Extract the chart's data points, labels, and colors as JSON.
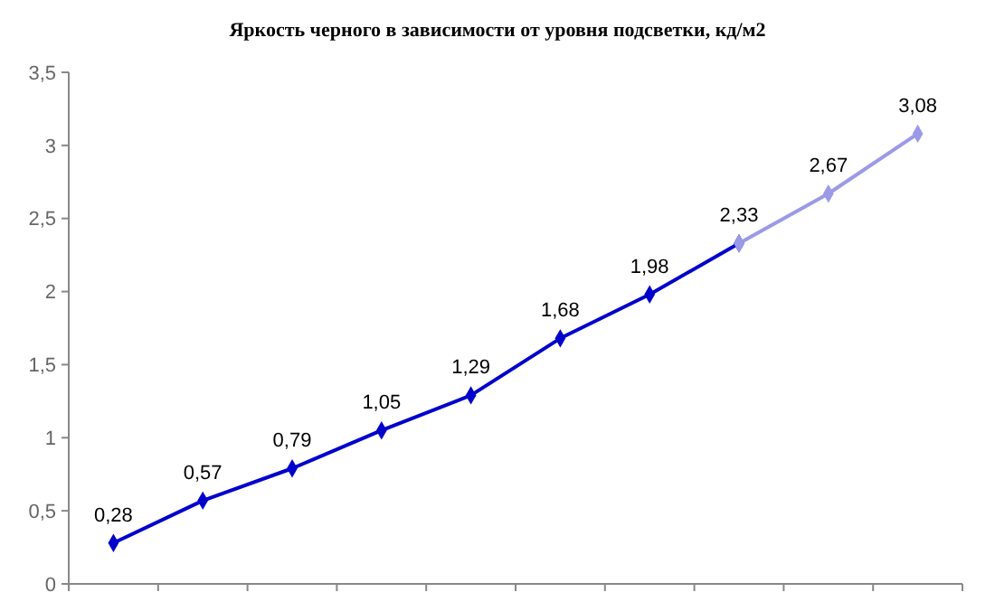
{
  "chart_data": {
    "type": "line",
    "title": "Яркость черного в зависимости от уровня подсветки, кд/м2",
    "categories": [
      null,
      null,
      null,
      null,
      null,
      null,
      null,
      null,
      null,
      null
    ],
    "series": [
      {
        "color": "#0000cc",
        "values": [
          0.28,
          0.57,
          0.79,
          1.05,
          1.29,
          1.68,
          1.98,
          2.33,
          null,
          null
        ],
        "value_labels": [
          "0,28",
          "0,57",
          "0,79",
          "1,05",
          "1,29",
          "1,68",
          "1,98",
          "2,33",
          null,
          null
        ]
      },
      {
        "color": "#9a9ae8",
        "values": [
          null,
          null,
          null,
          null,
          null,
          null,
          null,
          2.33,
          2.67,
          3.08
        ],
        "value_labels": [
          null,
          null,
          null,
          null,
          null,
          null,
          null,
          null,
          "2,67",
          "3,08"
        ]
      }
    ],
    "ylim": [
      0,
      3.5
    ],
    "yticks": [
      0,
      {
        "value": 0.5,
        "label": "0,5"
      },
      1,
      {
        "value": 1.5,
        "label": "1,5"
      },
      2,
      {
        "value": 2.5,
        "label": "2,5"
      },
      3,
      {
        "value": 3.5,
        "label": "3,5"
      }
    ],
    "marker": "diamond",
    "grid": false
  }
}
